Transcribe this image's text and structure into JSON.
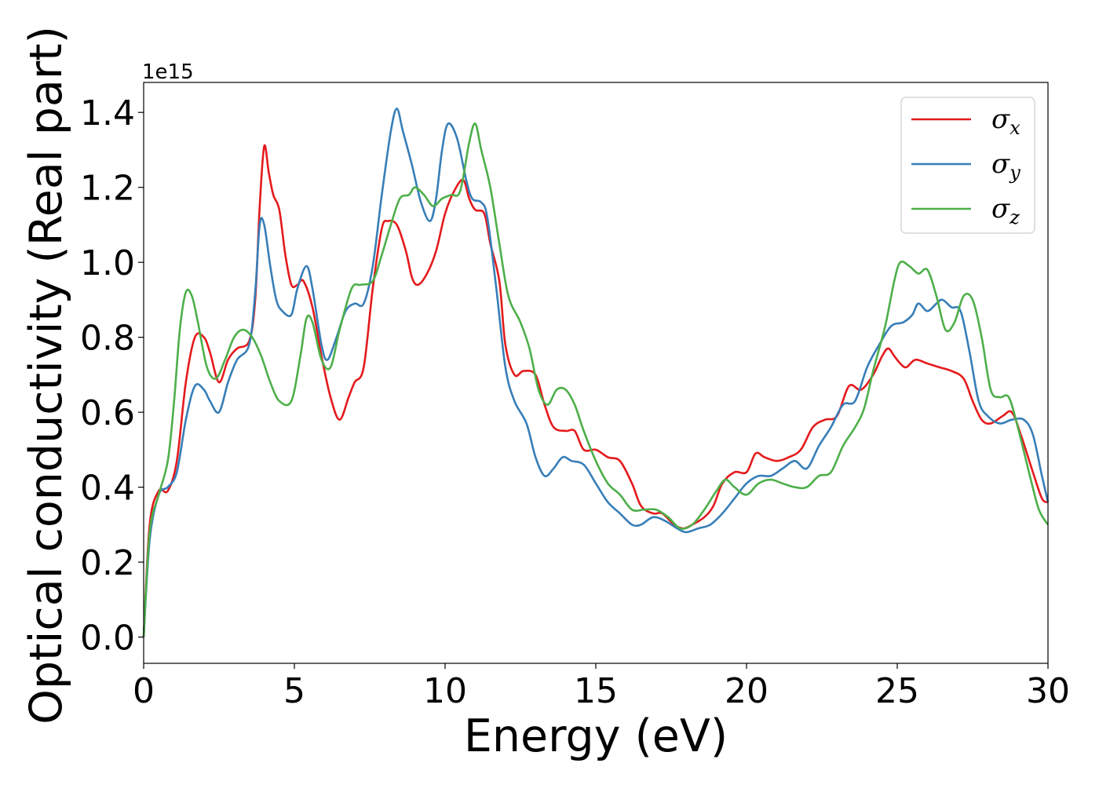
{
  "chart_data": {
    "type": "line",
    "xlabel": "Energy (eV)",
    "ylabel": "Optical conductivity (Real part)",
    "y_offset_label": "1e15",
    "xlim": [
      0,
      30
    ],
    "ylim": [
      -0.07,
      1.48
    ],
    "x_ticks": [
      0,
      5,
      10,
      15,
      20,
      25,
      30
    ],
    "x_tick_labels": [
      "0",
      "5",
      "10",
      "15",
      "20",
      "25",
      "30"
    ],
    "y_ticks": [
      0.0,
      0.2,
      0.4,
      0.6,
      0.8,
      1.0,
      1.2,
      1.4
    ],
    "y_tick_labels": [
      "0.0",
      "0.2",
      "0.4",
      "0.6",
      "0.8",
      "1.0",
      "1.2",
      "1.4"
    ],
    "grid": false,
    "legend_position": "top-right",
    "series": [
      {
        "name": "σ",
        "sub": "x",
        "color": "#e41a1c",
        "points": [
          [
            0,
            0.0
          ],
          [
            0.2,
            0.3
          ],
          [
            0.5,
            0.39
          ],
          [
            0.8,
            0.39
          ],
          [
            1.1,
            0.47
          ],
          [
            1.4,
            0.68
          ],
          [
            1.7,
            0.8
          ],
          [
            2.0,
            0.8
          ],
          [
            2.2,
            0.76
          ],
          [
            2.5,
            0.68
          ],
          [
            2.8,
            0.74
          ],
          [
            3.1,
            0.77
          ],
          [
            3.5,
            0.79
          ],
          [
            3.7,
            0.9
          ],
          [
            3.85,
            1.15
          ],
          [
            4.0,
            1.31
          ],
          [
            4.15,
            1.24
          ],
          [
            4.3,
            1.18
          ],
          [
            4.5,
            1.14
          ],
          [
            4.7,
            1.02
          ],
          [
            4.9,
            0.94
          ],
          [
            5.1,
            0.94
          ],
          [
            5.3,
            0.95
          ],
          [
            5.6,
            0.88
          ],
          [
            5.9,
            0.75
          ],
          [
            6.2,
            0.64
          ],
          [
            6.5,
            0.58
          ],
          [
            6.8,
            0.64
          ],
          [
            7.0,
            0.68
          ],
          [
            7.3,
            0.72
          ],
          [
            7.6,
            0.93
          ],
          [
            7.9,
            1.09
          ],
          [
            8.1,
            1.11
          ],
          [
            8.4,
            1.1
          ],
          [
            8.7,
            1.03
          ],
          [
            8.9,
            0.96
          ],
          [
            9.1,
            0.94
          ],
          [
            9.4,
            0.97
          ],
          [
            9.7,
            1.03
          ],
          [
            10.0,
            1.13
          ],
          [
            10.3,
            1.19
          ],
          [
            10.6,
            1.22
          ],
          [
            10.8,
            1.17
          ],
          [
            11.0,
            1.14
          ],
          [
            11.3,
            1.13
          ],
          [
            11.5,
            1.05
          ],
          [
            11.8,
            0.95
          ],
          [
            12.0,
            0.78
          ],
          [
            12.3,
            0.7
          ],
          [
            12.6,
            0.71
          ],
          [
            13.0,
            0.7
          ],
          [
            13.3,
            0.62
          ],
          [
            13.6,
            0.56
          ],
          [
            14.0,
            0.55
          ],
          [
            14.3,
            0.55
          ],
          [
            14.6,
            0.5
          ],
          [
            15.0,
            0.5
          ],
          [
            15.4,
            0.48
          ],
          [
            15.8,
            0.47
          ],
          [
            16.2,
            0.41
          ],
          [
            16.5,
            0.35
          ],
          [
            16.9,
            0.33
          ],
          [
            17.2,
            0.33
          ],
          [
            17.6,
            0.3
          ],
          [
            17.9,
            0.29
          ],
          [
            18.2,
            0.3
          ],
          [
            18.6,
            0.32
          ],
          [
            18.9,
            0.35
          ],
          [
            19.2,
            0.41
          ],
          [
            19.6,
            0.44
          ],
          [
            20.0,
            0.44
          ],
          [
            20.3,
            0.49
          ],
          [
            20.6,
            0.48
          ],
          [
            21.0,
            0.47
          ],
          [
            21.4,
            0.48
          ],
          [
            21.8,
            0.5
          ],
          [
            22.2,
            0.56
          ],
          [
            22.6,
            0.58
          ],
          [
            23.0,
            0.59
          ],
          [
            23.4,
            0.67
          ],
          [
            23.8,
            0.66
          ],
          [
            24.2,
            0.7
          ],
          [
            24.5,
            0.75
          ],
          [
            24.7,
            0.77
          ],
          [
            24.9,
            0.75
          ],
          [
            25.1,
            0.73
          ],
          [
            25.3,
            0.72
          ],
          [
            25.6,
            0.74
          ],
          [
            26.0,
            0.73
          ],
          [
            26.4,
            0.72
          ],
          [
            26.8,
            0.71
          ],
          [
            27.2,
            0.69
          ],
          [
            27.5,
            0.63
          ],
          [
            27.8,
            0.58
          ],
          [
            28.1,
            0.57
          ],
          [
            28.5,
            0.59
          ],
          [
            28.8,
            0.6
          ],
          [
            29.1,
            0.54
          ],
          [
            29.5,
            0.44
          ],
          [
            29.8,
            0.37
          ],
          [
            30.0,
            0.36
          ]
        ]
      },
      {
        "name": "σ",
        "sub": "y",
        "color": "#377eb8",
        "points": [
          [
            0,
            0.0
          ],
          [
            0.2,
            0.26
          ],
          [
            0.5,
            0.38
          ],
          [
            0.8,
            0.4
          ],
          [
            1.1,
            0.44
          ],
          [
            1.4,
            0.58
          ],
          [
            1.7,
            0.67
          ],
          [
            2.0,
            0.66
          ],
          [
            2.2,
            0.63
          ],
          [
            2.5,
            0.6
          ],
          [
            2.8,
            0.68
          ],
          [
            3.1,
            0.74
          ],
          [
            3.5,
            0.78
          ],
          [
            3.7,
            0.92
          ],
          [
            3.85,
            1.1
          ],
          [
            4.0,
            1.1
          ],
          [
            4.2,
            0.99
          ],
          [
            4.4,
            0.9
          ],
          [
            4.6,
            0.87
          ],
          [
            4.9,
            0.86
          ],
          [
            5.1,
            0.93
          ],
          [
            5.4,
            0.99
          ],
          [
            5.6,
            0.93
          ],
          [
            5.9,
            0.78
          ],
          [
            6.1,
            0.74
          ],
          [
            6.4,
            0.8
          ],
          [
            6.7,
            0.87
          ],
          [
            7.0,
            0.89
          ],
          [
            7.3,
            0.89
          ],
          [
            7.6,
            0.99
          ],
          [
            7.9,
            1.18
          ],
          [
            8.2,
            1.35
          ],
          [
            8.4,
            1.41
          ],
          [
            8.6,
            1.35
          ],
          [
            8.9,
            1.26
          ],
          [
            9.2,
            1.16
          ],
          [
            9.5,
            1.11
          ],
          [
            9.7,
            1.17
          ],
          [
            9.9,
            1.3
          ],
          [
            10.1,
            1.37
          ],
          [
            10.4,
            1.33
          ],
          [
            10.7,
            1.22
          ],
          [
            10.9,
            1.17
          ],
          [
            11.2,
            1.16
          ],
          [
            11.4,
            1.12
          ],
          [
            11.7,
            0.93
          ],
          [
            12.0,
            0.72
          ],
          [
            12.3,
            0.63
          ],
          [
            12.7,
            0.57
          ],
          [
            13.0,
            0.48
          ],
          [
            13.3,
            0.43
          ],
          [
            13.6,
            0.45
          ],
          [
            13.9,
            0.48
          ],
          [
            14.2,
            0.47
          ],
          [
            14.6,
            0.46
          ],
          [
            15.0,
            0.41
          ],
          [
            15.4,
            0.36
          ],
          [
            15.8,
            0.33
          ],
          [
            16.2,
            0.3
          ],
          [
            16.5,
            0.3
          ],
          [
            16.9,
            0.32
          ],
          [
            17.3,
            0.31
          ],
          [
            17.7,
            0.29
          ],
          [
            18.0,
            0.28
          ],
          [
            18.4,
            0.29
          ],
          [
            18.8,
            0.3
          ],
          [
            19.2,
            0.33
          ],
          [
            19.6,
            0.37
          ],
          [
            20.0,
            0.41
          ],
          [
            20.4,
            0.43
          ],
          [
            20.8,
            0.43
          ],
          [
            21.2,
            0.45
          ],
          [
            21.6,
            0.47
          ],
          [
            22.0,
            0.45
          ],
          [
            22.4,
            0.51
          ],
          [
            22.8,
            0.56
          ],
          [
            23.2,
            0.62
          ],
          [
            23.6,
            0.63
          ],
          [
            24.0,
            0.72
          ],
          [
            24.4,
            0.78
          ],
          [
            24.8,
            0.83
          ],
          [
            25.2,
            0.84
          ],
          [
            25.5,
            0.86
          ],
          [
            25.7,
            0.89
          ],
          [
            26.0,
            0.87
          ],
          [
            26.3,
            0.89
          ],
          [
            26.5,
            0.9
          ],
          [
            26.8,
            0.88
          ],
          [
            27.1,
            0.87
          ],
          [
            27.4,
            0.76
          ],
          [
            27.7,
            0.63
          ],
          [
            28.0,
            0.59
          ],
          [
            28.4,
            0.57
          ],
          [
            28.8,
            0.58
          ],
          [
            29.2,
            0.58
          ],
          [
            29.5,
            0.54
          ],
          [
            29.8,
            0.43
          ],
          [
            30.0,
            0.36
          ]
        ]
      },
      {
        "name": "σ",
        "sub": "z",
        "color": "#4daf4a",
        "points": [
          [
            0,
            0.0
          ],
          [
            0.2,
            0.28
          ],
          [
            0.5,
            0.38
          ],
          [
            0.8,
            0.47
          ],
          [
            1.0,
            0.62
          ],
          [
            1.2,
            0.82
          ],
          [
            1.4,
            0.92
          ],
          [
            1.6,
            0.91
          ],
          [
            1.8,
            0.84
          ],
          [
            2.1,
            0.72
          ],
          [
            2.4,
            0.69
          ],
          [
            2.7,
            0.74
          ],
          [
            3.0,
            0.8
          ],
          [
            3.3,
            0.82
          ],
          [
            3.6,
            0.8
          ],
          [
            3.9,
            0.75
          ],
          [
            4.2,
            0.68
          ],
          [
            4.5,
            0.63
          ],
          [
            4.9,
            0.63
          ],
          [
            5.2,
            0.75
          ],
          [
            5.4,
            0.85
          ],
          [
            5.6,
            0.84
          ],
          [
            5.9,
            0.74
          ],
          [
            6.2,
            0.72
          ],
          [
            6.5,
            0.82
          ],
          [
            6.9,
            0.93
          ],
          [
            7.2,
            0.94
          ],
          [
            7.6,
            0.95
          ],
          [
            7.9,
            1.02
          ],
          [
            8.2,
            1.1
          ],
          [
            8.5,
            1.17
          ],
          [
            8.8,
            1.18
          ],
          [
            9.0,
            1.2
          ],
          [
            9.3,
            1.18
          ],
          [
            9.6,
            1.15
          ],
          [
            9.9,
            1.17
          ],
          [
            10.2,
            1.18
          ],
          [
            10.5,
            1.19
          ],
          [
            10.8,
            1.32
          ],
          [
            11.0,
            1.37
          ],
          [
            11.2,
            1.3
          ],
          [
            11.5,
            1.2
          ],
          [
            11.8,
            1.05
          ],
          [
            12.1,
            0.91
          ],
          [
            12.5,
            0.84
          ],
          [
            12.8,
            0.77
          ],
          [
            13.1,
            0.66
          ],
          [
            13.4,
            0.62
          ],
          [
            13.7,
            0.66
          ],
          [
            14.0,
            0.66
          ],
          [
            14.3,
            0.62
          ],
          [
            14.6,
            0.55
          ],
          [
            15.0,
            0.47
          ],
          [
            15.4,
            0.41
          ],
          [
            15.8,
            0.38
          ],
          [
            16.2,
            0.34
          ],
          [
            16.6,
            0.34
          ],
          [
            17.0,
            0.34
          ],
          [
            17.4,
            0.32
          ],
          [
            17.8,
            0.29
          ],
          [
            18.2,
            0.3
          ],
          [
            18.6,
            0.34
          ],
          [
            19.0,
            0.39
          ],
          [
            19.3,
            0.42
          ],
          [
            19.6,
            0.4
          ],
          [
            20.0,
            0.38
          ],
          [
            20.4,
            0.41
          ],
          [
            20.8,
            0.42
          ],
          [
            21.2,
            0.41
          ],
          [
            21.6,
            0.4
          ],
          [
            22.0,
            0.4
          ],
          [
            22.4,
            0.43
          ],
          [
            22.8,
            0.44
          ],
          [
            23.2,
            0.51
          ],
          [
            23.6,
            0.56
          ],
          [
            23.9,
            0.61
          ],
          [
            24.2,
            0.71
          ],
          [
            24.6,
            0.83
          ],
          [
            24.9,
            0.95
          ],
          [
            25.1,
            1.0
          ],
          [
            25.4,
            0.99
          ],
          [
            25.7,
            0.97
          ],
          [
            26.0,
            0.98
          ],
          [
            26.3,
            0.91
          ],
          [
            26.6,
            0.82
          ],
          [
            26.9,
            0.84
          ],
          [
            27.2,
            0.91
          ],
          [
            27.5,
            0.9
          ],
          [
            27.8,
            0.8
          ],
          [
            28.1,
            0.66
          ],
          [
            28.4,
            0.64
          ],
          [
            28.7,
            0.64
          ],
          [
            29.0,
            0.56
          ],
          [
            29.4,
            0.43
          ],
          [
            29.7,
            0.34
          ],
          [
            30.0,
            0.3
          ]
        ]
      }
    ]
  }
}
